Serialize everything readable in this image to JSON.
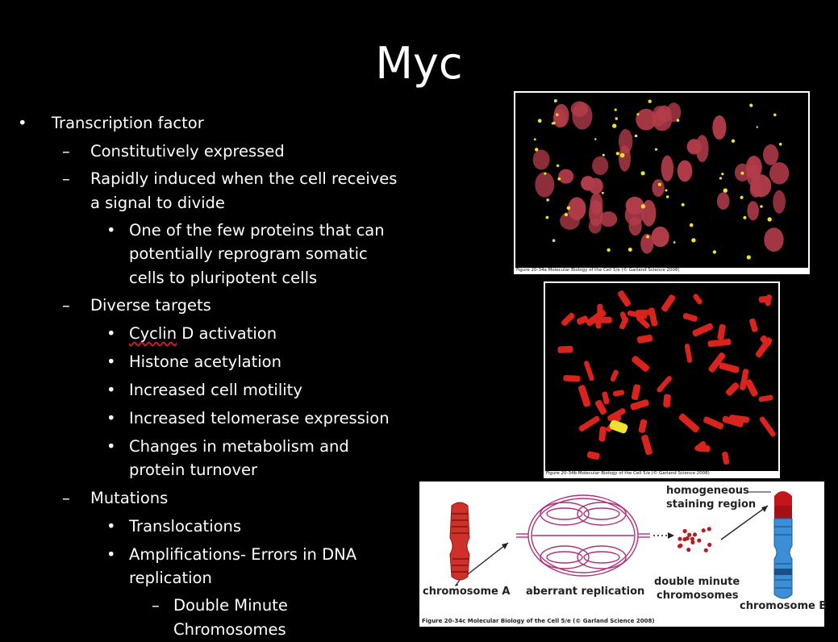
{
  "slide": {
    "title": "Myc",
    "bullets": {
      "l1_transcription": "Transcription factor",
      "l2_constitutive": "Constitutively expressed",
      "l2_rapid_a": "Rapidly induced when the cell receives",
      "l2_rapid_b": "a signal to divide",
      "l3_reprogram_a": "One of the few proteins that can",
      "l3_reprogram_b": "potentially reprogram somatic",
      "l3_reprogram_c": "cells to pluripotent cells",
      "l2_targets": "Diverse targets",
      "l3_cyclin_word": "Cyclin",
      "l3_cyclin_rest": " D activation",
      "l3_histone": "Histone acetylation",
      "l3_motility": "Increased cell motility",
      "l3_telomerase": "Increased telomerase expression",
      "l3_metab_a": "Changes in metabolism and",
      "l3_metab_b": "protein turnover",
      "l2_mutations": "Mutations",
      "l3_transloc": "Translocations",
      "l3_amp_a": "Amplifications- Errors in DNA",
      "l3_amp_b": "replication",
      "l4_dm_a": "Double Minute",
      "l4_dm_b": "Chromosomes"
    },
    "markers": {
      "bullet": "•",
      "dash": "–"
    }
  },
  "figures": {
    "fig_a_caption": "Figure 20-34a  Molecular Biology of the Cell 5/e (© Garland Science 2008)",
    "fig_b_caption": "Figure 20-34b  Molecular Biology of the Cell 5/e (© Garland Science 2008)",
    "fig_c_caption": "Figure 20-34c  Molecular Biology of the Cell 5/e (© Garland Science 2008)",
    "diagram": {
      "chromosome_a": "chromosome A",
      "aberrant": "aberrant replication",
      "dm_a": "double minute",
      "dm_b": "chromosomes",
      "hsr_a": "homogeneous",
      "hsr_b": "staining region",
      "chromosome_b": "chromosome B"
    },
    "colors": {
      "chromosome_red": "#d0302a",
      "amplicon_magenta": "#b0307a",
      "chromosome_blue": "#3a8fd6",
      "hsr_red": "#c0161c",
      "fish_yellow": "#f0e030"
    }
  }
}
